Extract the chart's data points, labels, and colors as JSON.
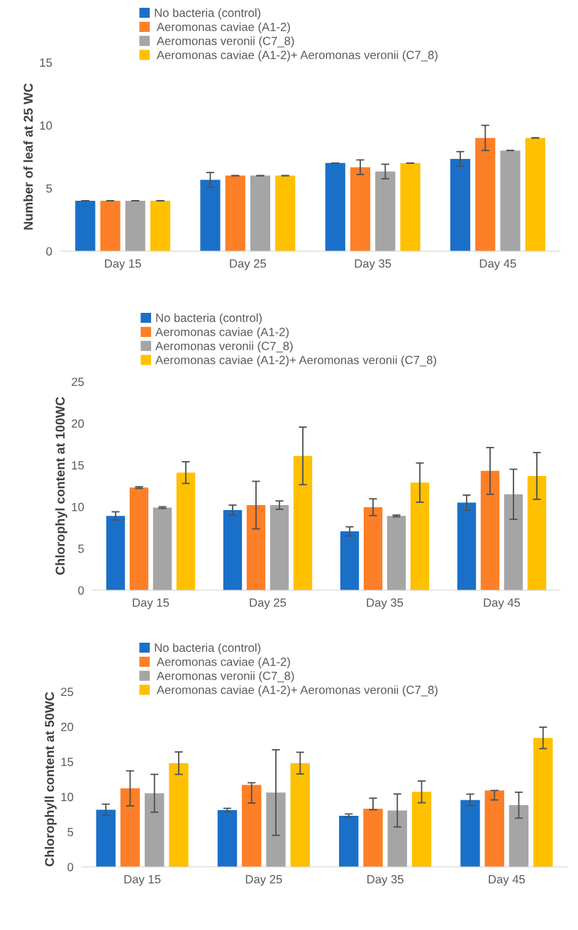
{
  "chart_data": [
    {
      "type": "bar",
      "ylabel": "Number of leaf at 25 WC",
      "categories": [
        "Day 15",
        "Day 25",
        "Day 35",
        "Day 45"
      ],
      "ylim": [
        0,
        15
      ],
      "yticks": [
        0,
        5,
        10,
        15
      ],
      "legend": "top",
      "grid": false,
      "series": [
        {
          "name": "No bacteria (control)",
          "color": "#1a70c8",
          "values": [
            4,
            5.67,
            7,
            7.33
          ],
          "errors": [
            0,
            0.58,
            0,
            0.58
          ]
        },
        {
          "name": " Aeromonas caviae (A1-2)",
          "color": "#fd7f27",
          "values": [
            4,
            6,
            6.67,
            9
          ],
          "errors": [
            0,
            0,
            0.58,
            1
          ]
        },
        {
          "name": " Aeromonas veronii (C7_8)",
          "color": "#a5a5a5",
          "values": [
            4,
            6,
            6.33,
            8
          ],
          "errors": [
            0,
            0,
            0.58,
            0
          ]
        },
        {
          "name": " Aeromonas caviae (A1-2)+ Aeromonas veronii (C7_8)",
          "color": "#ffc000",
          "values": [
            4,
            6,
            7,
            9
          ],
          "errors": [
            0,
            0,
            0,
            0
          ]
        }
      ]
    },
    {
      "type": "bar",
      "ylabel": "Chlorophyl content at 100WC",
      "categories": [
        "Day 15",
        "Day 25",
        "Day 35",
        "Day 45"
      ],
      "ylim": [
        0,
        25
      ],
      "yticks": [
        0,
        5,
        10,
        15,
        20,
        25
      ],
      "legend": "top",
      "grid": false,
      "series": [
        {
          "name": "No bacteria (control)",
          "color": "#1a70c8",
          "values": [
            8.9,
            9.6,
            7.05,
            10.5
          ],
          "errors": [
            0.5,
            0.6,
            0.55,
            0.9
          ]
        },
        {
          "name": "Aeromonas caviae (A1-2)",
          "color": "#fd7f27",
          "values": [
            12.3,
            10.2,
            9.95,
            14.3
          ],
          "errors": [
            0.1,
            2.85,
            1.0,
            2.8
          ]
        },
        {
          "name": "Aeromonas veronii (C7_8)",
          "color": "#a5a5a5",
          "values": [
            9.9,
            10.2,
            8.9,
            11.5
          ],
          "errors": [
            0.1,
            0.5,
            0.1,
            3.0
          ]
        },
        {
          "name": "Aeromonas caviae (A1-2)+ Aeromonas veronii (C7_8)",
          "color": "#ffc000",
          "values": [
            14.1,
            16.1,
            12.9,
            13.7
          ],
          "errors": [
            1.3,
            3.45,
            2.35,
            2.8
          ]
        }
      ]
    },
    {
      "type": "bar",
      "ylabel": "Chlorophyll content at 50WC",
      "categories": [
        "Day 15",
        "Day 25",
        "Day 35",
        "Day 45"
      ],
      "ylim": [
        0,
        25
      ],
      "yticks": [
        0,
        5,
        10,
        15,
        20,
        25
      ],
      "legend": "top",
      "grid": false,
      "series": [
        {
          "name": "No bacteria (control)",
          "color": "#1a70c8",
          "values": [
            8.15,
            8.1,
            7.3,
            9.55
          ],
          "errors": [
            0.8,
            0.25,
            0.25,
            0.83
          ]
        },
        {
          "name": " Aeromonas caviae (A1-2)",
          "color": "#fd7f27",
          "values": [
            11.2,
            11.7,
            8.3,
            10.9
          ],
          "errors": [
            2.5,
            [
              9.1,
              12.0
            ],
            [
              8.15,
              9.8
            ],
            [
              9.55,
              10.9
            ]
          ]
        },
        {
          "name": " Aeromonas veronii (C7_8)",
          "color": "#a5a5a5",
          "values": [
            10.5,
            10.6,
            8.05,
            8.8
          ],
          "errors": [
            2.7,
            6.1,
            2.35,
            1.85
          ]
        },
        {
          "name": " Aeromonas caviae (A1-2)+ Aeromonas veronii (C7_8)",
          "color": "#ffc000",
          "values": [
            14.8,
            14.8,
            10.7,
            18.4
          ],
          "errors": [
            1.6,
            1.55,
            1.55,
            1.53
          ]
        }
      ]
    }
  ]
}
